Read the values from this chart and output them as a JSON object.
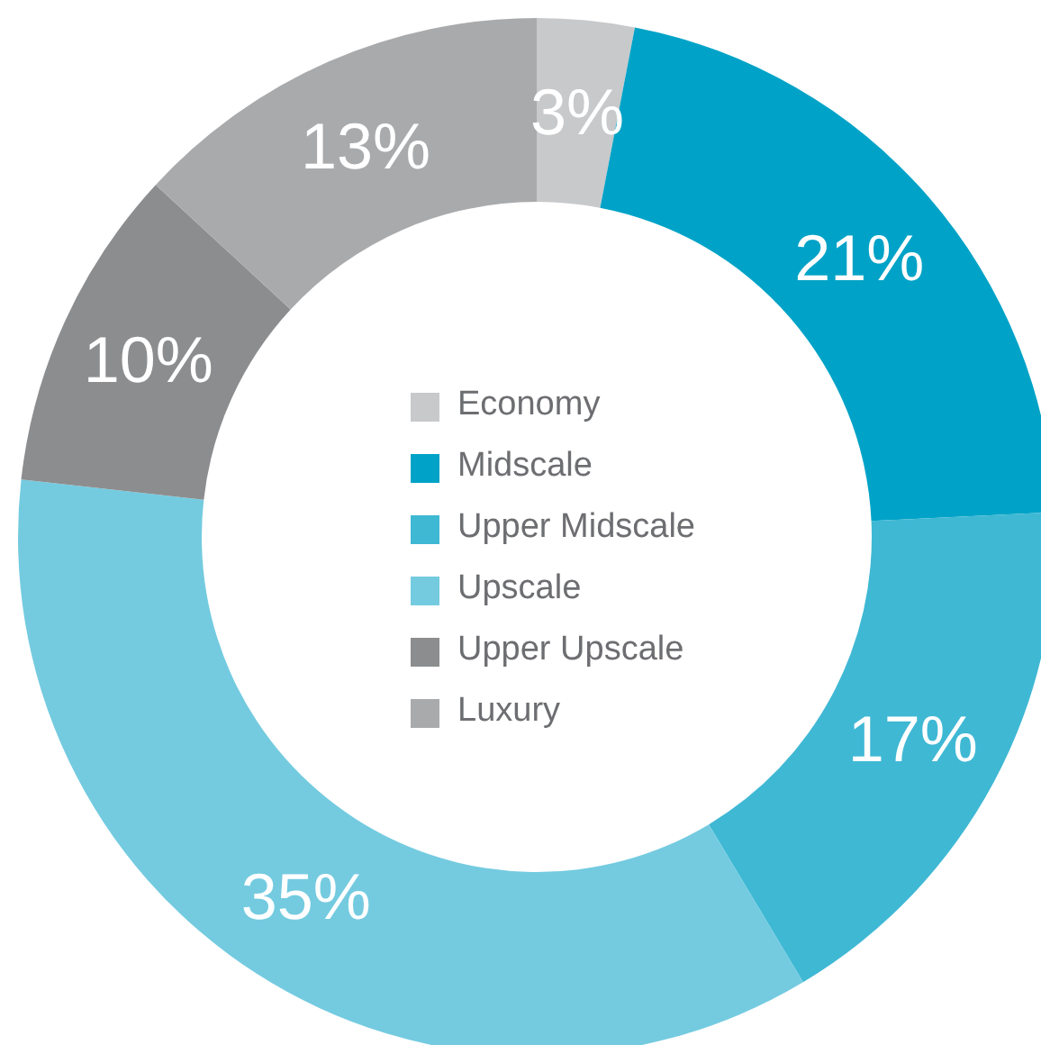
{
  "chart_data": {
    "type": "donut",
    "categories": [
      "Economy",
      "Midscale",
      "Upper Midscale",
      "Upscale",
      "Upper Upscale",
      "Luxury"
    ],
    "values": [
      3,
      21,
      17,
      35,
      10,
      13
    ],
    "value_labels": [
      "3%",
      "21%",
      "17%",
      "35%",
      "10%",
      "13%"
    ],
    "colors": [
      "#c8c9cb",
      "#00a3c7",
      "#3fb8d4",
      "#74cbe0",
      "#8c8d8f",
      "#a9aaac"
    ],
    "legend": "center"
  }
}
